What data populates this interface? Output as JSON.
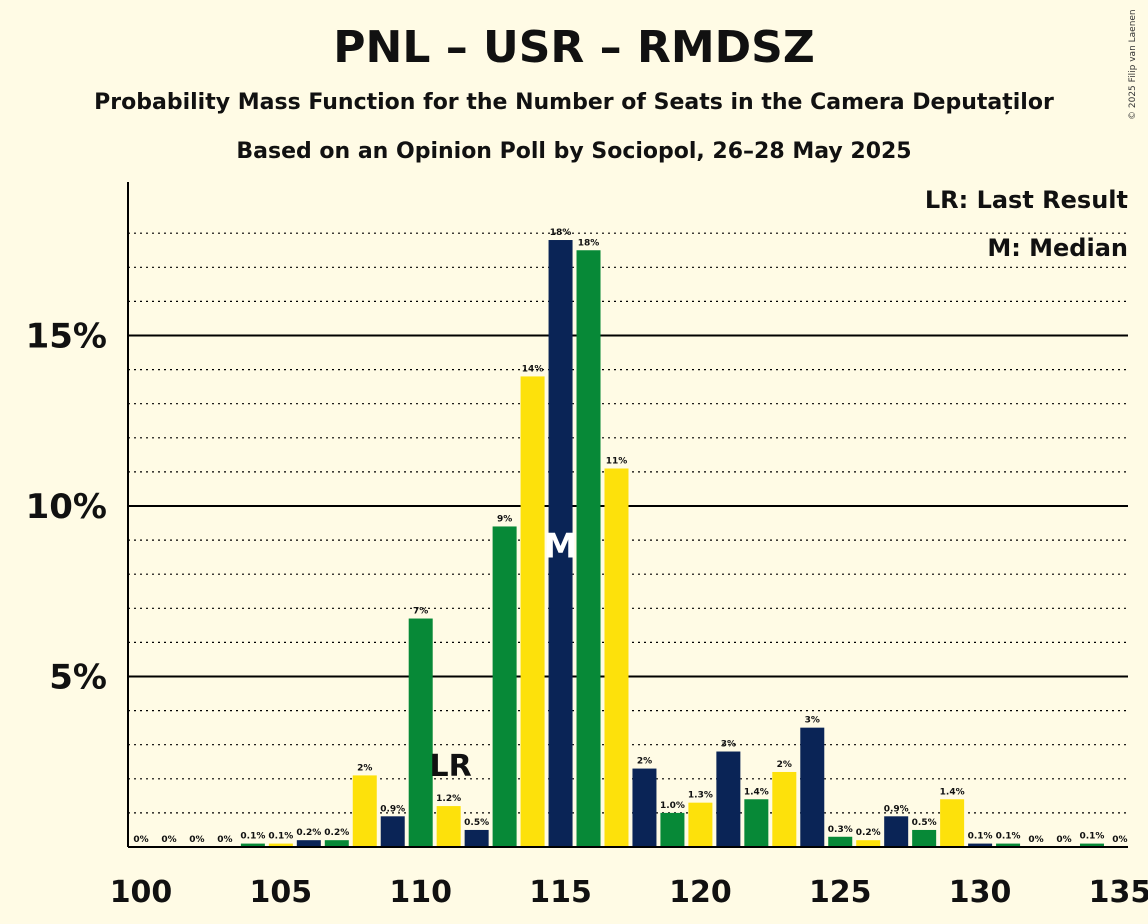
{
  "title": "PNL – USR – RMDSZ",
  "subtitle": "Probability Mass Function for the Number of Seats in the Camera Deputaților",
  "subtitle2": "Based on an Opinion Poll by Sociopol, 26–28 May 2025",
  "copyright": "© 2025 Filip van Laenen",
  "legend": {
    "last_result": "LR: Last Result",
    "median": "M: Median"
  },
  "colors": {
    "navy": "#0A2456",
    "green": "#078937",
    "yellow": "#FDE10B",
    "background": "#FFFBE5"
  },
  "chart_data": {
    "type": "bar",
    "title": "PNL – USR – RMDSZ",
    "xlabel": "",
    "ylabel": "",
    "x": [
      100,
      101,
      102,
      103,
      104,
      105,
      106,
      107,
      108,
      109,
      110,
      111,
      112,
      113,
      114,
      115,
      116,
      117,
      118,
      119,
      120,
      121,
      122,
      123,
      124,
      125,
      126,
      127,
      128,
      129,
      130,
      131,
      132,
      133,
      134,
      135
    ],
    "values": [
      0,
      0,
      0,
      0,
      0.1,
      0.1,
      0.2,
      0.2,
      2.1,
      0.9,
      6.7,
      1.2,
      0.5,
      9.4,
      13.8,
      17.8,
      17.5,
      11.1,
      2.3,
      1.0,
      1.3,
      2.8,
      1.4,
      2.2,
      3.5,
      0.3,
      0.2,
      0.9,
      0.5,
      1.4,
      0.1,
      0.1,
      0,
      0,
      0.1,
      0
    ],
    "labels": [
      "0%",
      "0%",
      "0%",
      "0%",
      "0.1%",
      "0.1%",
      "0.2%",
      "0.2%",
      "2%",
      "0.9%",
      "7%",
      "1.2%",
      "0.5%",
      "9%",
      "14%",
      "18%",
      "18%",
      "11%",
      "2%",
      "1.0%",
      "1.3%",
      "3%",
      "1.4%",
      "2%",
      "3%",
      "0.3%",
      "0.2%",
      "0.9%",
      "0.5%",
      "1.4%",
      "0.1%",
      "0.1%",
      "0%",
      "0%",
      "0.1%",
      "0%"
    ],
    "x_ticks": [
      100,
      105,
      110,
      115,
      120,
      125,
      130,
      135
    ],
    "x_tick_labels": [
      "100",
      "105",
      "110",
      "115",
      "120",
      "125",
      "130",
      "135"
    ],
    "y_ticks": [
      5,
      10,
      15
    ],
    "y_tick_labels": [
      "5%",
      "10%",
      "15%"
    ],
    "ylim": [
      0,
      19
    ],
    "last_result": 111,
    "last_result_label": "LR",
    "median": 115,
    "median_label": "M",
    "grid": true
  }
}
